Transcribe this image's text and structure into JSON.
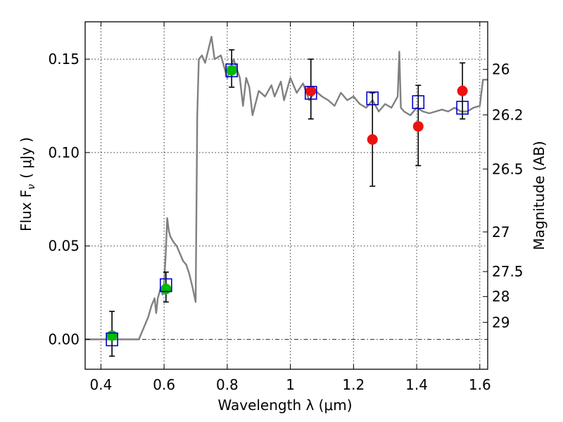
{
  "chart_data": {
    "type": "scatter",
    "xlabel": "Wavelength  λ (μm)",
    "ylabel": "Flux  F",
    "ylabel_sub": "ν",
    "ylabel_units": "( μJy )",
    "y2label": "Magnitude (AB)",
    "xlim": [
      0.35,
      1.625
    ],
    "ylim": [
      -0.016,
      0.17
    ],
    "grid": true,
    "x_ticks": [
      0.4,
      0.6,
      0.8,
      1.0,
      1.2,
      1.4,
      1.6
    ],
    "x_tick_labels": [
      "0.4",
      "0.6",
      "0.8",
      "1",
      "1.2",
      "1.4",
      "1.6"
    ],
    "y_ticks": [
      0.0,
      0.05,
      0.1,
      0.15
    ],
    "y_tick_labels": [
      "0.00",
      "0.05",
      "0.10",
      "0.15"
    ],
    "mag_ticks": [
      {
        "label": "26",
        "flux": 0.1445
      },
      {
        "label": "26.2",
        "flux": 0.1202
      },
      {
        "label": "26.5",
        "flux": 0.0912
      },
      {
        "label": "27",
        "flux": 0.0575
      },
      {
        "label": "27.5",
        "flux": 0.0363
      },
      {
        "label": "28",
        "flux": 0.0229
      },
      {
        "label": "29",
        "flux": 0.0091
      }
    ],
    "zero_line": 0.0,
    "series": [
      {
        "name": "model-spectrum",
        "kind": "line",
        "color": "#808080",
        "x": [
          0.35,
          0.52,
          0.54,
          0.55,
          0.56,
          0.57,
          0.575,
          0.58,
          0.59,
          0.595,
          0.6,
          0.605,
          0.61,
          0.615,
          0.62,
          0.63,
          0.64,
          0.66,
          0.67,
          0.68,
          0.69,
          0.7,
          0.705,
          0.71,
          0.72,
          0.73,
          0.74,
          0.75,
          0.76,
          0.78,
          0.8,
          0.82,
          0.84,
          0.85,
          0.86,
          0.87,
          0.88,
          0.9,
          0.92,
          0.94,
          0.95,
          0.97,
          0.98,
          1.0,
          1.02,
          1.04,
          1.06,
          1.08,
          1.1,
          1.12,
          1.14,
          1.16,
          1.18,
          1.2,
          1.22,
          1.24,
          1.26,
          1.28,
          1.3,
          1.32,
          1.34,
          1.345,
          1.35,
          1.36,
          1.38,
          1.4,
          1.42,
          1.44,
          1.46,
          1.48,
          1.5,
          1.52,
          1.54,
          1.56,
          1.58,
          1.6,
          1.61,
          1.625
        ],
        "y": [
          0.0,
          0.0,
          0.008,
          0.012,
          0.018,
          0.022,
          0.014,
          0.022,
          0.028,
          0.024,
          0.03,
          0.045,
          0.065,
          0.058,
          0.055,
          0.052,
          0.05,
          0.042,
          0.04,
          0.035,
          0.028,
          0.02,
          0.12,
          0.15,
          0.152,
          0.148,
          0.155,
          0.162,
          0.15,
          0.152,
          0.14,
          0.15,
          0.14,
          0.125,
          0.14,
          0.135,
          0.12,
          0.133,
          0.13,
          0.136,
          0.13,
          0.138,
          0.128,
          0.14,
          0.132,
          0.137,
          0.128,
          0.133,
          0.13,
          0.128,
          0.125,
          0.132,
          0.128,
          0.13,
          0.126,
          0.124,
          0.128,
          0.122,
          0.126,
          0.124,
          0.13,
          0.154,
          0.124,
          0.122,
          0.12,
          0.124,
          0.122,
          0.121,
          0.122,
          0.123,
          0.122,
          0.124,
          0.122,
          0.122,
          0.124,
          0.125,
          0.139,
          0.139
        ]
      },
      {
        "name": "observed-detections",
        "kind": "points",
        "marker": "circle",
        "color": "#00bb00",
        "x": [
          0.435,
          0.606,
          0.814
        ],
        "y": [
          0.002,
          0.027,
          0.144
        ],
        "yerr_low": [
          0.011,
          0.007,
          0.009
        ],
        "yerr_high": [
          0.013,
          0.009,
          0.011
        ]
      },
      {
        "name": "observed-nir",
        "kind": "points",
        "marker": "circle",
        "color": "#ee1111",
        "x": [
          1.065,
          1.26,
          1.405,
          1.545
        ],
        "y": [
          0.133,
          0.107,
          0.114,
          0.133
        ],
        "yerr_low": [
          0.015,
          0.025,
          0.021,
          0.015
        ],
        "yerr_high": [
          0.017,
          0.025,
          0.022,
          0.015
        ]
      },
      {
        "name": "model-photometry",
        "kind": "points",
        "marker": "square",
        "color": "#0000cc",
        "x": [
          0.435,
          0.606,
          0.814,
          1.065,
          1.26,
          1.405,
          1.545
        ],
        "y": [
          0.0,
          0.029,
          0.144,
          0.132,
          0.129,
          0.127,
          0.124
        ]
      }
    ]
  }
}
